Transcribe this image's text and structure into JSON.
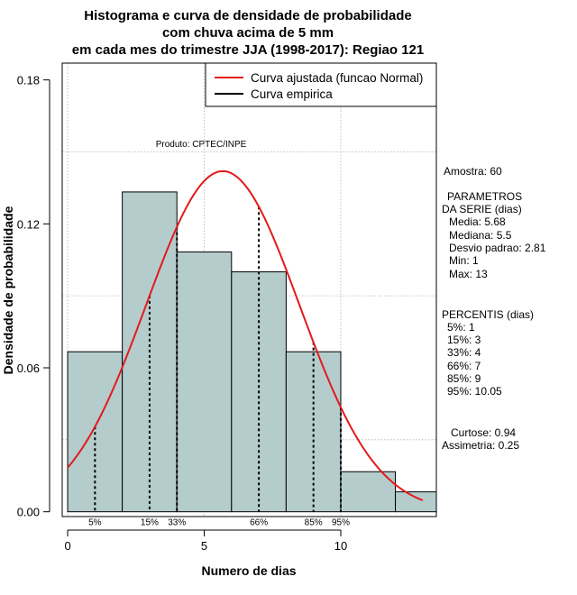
{
  "chart_data": {
    "type": "histogram",
    "title_lines": [
      "Histograma e curva de densidade de probabilidade",
      "com chuva acima de 5 mm",
      "em cada mes do trimestre JJA (1998-2017): Regiao 121"
    ],
    "xlabel": "Numero de dias",
    "ylabel": "Densidade de probabilidade",
    "xlim": [
      -0.2,
      13.5
    ],
    "ylim": [
      -0.002,
      0.187
    ],
    "x_ticks": [
      0,
      5,
      10
    ],
    "y_ticks": [
      0.0,
      0.06,
      0.12,
      0.18
    ],
    "y_tick_labels": [
      "0.00",
      "0.06",
      "0.12",
      "0.18"
    ],
    "grid_x": [
      0,
      5,
      10
    ],
    "grid_y": [
      0.03,
      0.09,
      0.15
    ],
    "grid": true,
    "bins": [
      {
        "x0": 0,
        "x1": 2,
        "density": 0.0667
      },
      {
        "x0": 2,
        "x1": 4,
        "density": 0.1333
      },
      {
        "x0": 4,
        "x1": 6,
        "density": 0.1083
      },
      {
        "x0": 6,
        "x1": 8,
        "density": 0.1
      },
      {
        "x0": 8,
        "x1": 10,
        "density": 0.0667
      },
      {
        "x0": 10,
        "x1": 12,
        "density": 0.0167
      },
      {
        "x0": 12,
        "x1": 14,
        "density": 0.0083
      }
    ],
    "normal_curve": {
      "mean": 5.68,
      "sd": 2.81,
      "x_from": 0,
      "x_to": 13
    },
    "percentile_markers": [
      {
        "x": 1,
        "label": "5%"
      },
      {
        "x": 3,
        "label": "15%"
      },
      {
        "x": 4,
        "label": "33%"
      },
      {
        "x": 7,
        "label": "66%"
      },
      {
        "x": 9,
        "label": "85%"
      },
      {
        "x": 10,
        "label": "95%"
      }
    ],
    "watermark": "Produto: CPTEC/INPE",
    "legend": {
      "position": "top-right",
      "items": [
        {
          "label": "Curva ajustada (funcao Normal)",
          "color": "#e31a1c"
        },
        {
          "label": "Curva empirica",
          "color": "#000000"
        }
      ]
    },
    "colors": {
      "bar_fill": "#b4cccc",
      "bar_stroke": "#000000",
      "curve": "#e31a1c",
      "grid": "#b0b0b0"
    }
  },
  "stats_panel": {
    "amostra": "Amostra: 60",
    "parametros_title_1": "PARAMETROS",
    "parametros_title_2": "DA SERIE (dias)",
    "media": "Media: 5.68",
    "mediana": "Mediana: 5.5",
    "desvio": "Desvio padrao: 2.81",
    "min": "Min: 1",
    "max": "Max: 13",
    "percentis_title": "PERCENTIS (dias)",
    "p5": "5%: 1",
    "p15": "15%: 3",
    "p33": "33%: 4",
    "p66": "66%: 7",
    "p85": "85%: 9",
    "p95": "95%: 10.05",
    "curtose": "Curtose: 0.94",
    "assimetria": "Assimetria: 0.25"
  }
}
